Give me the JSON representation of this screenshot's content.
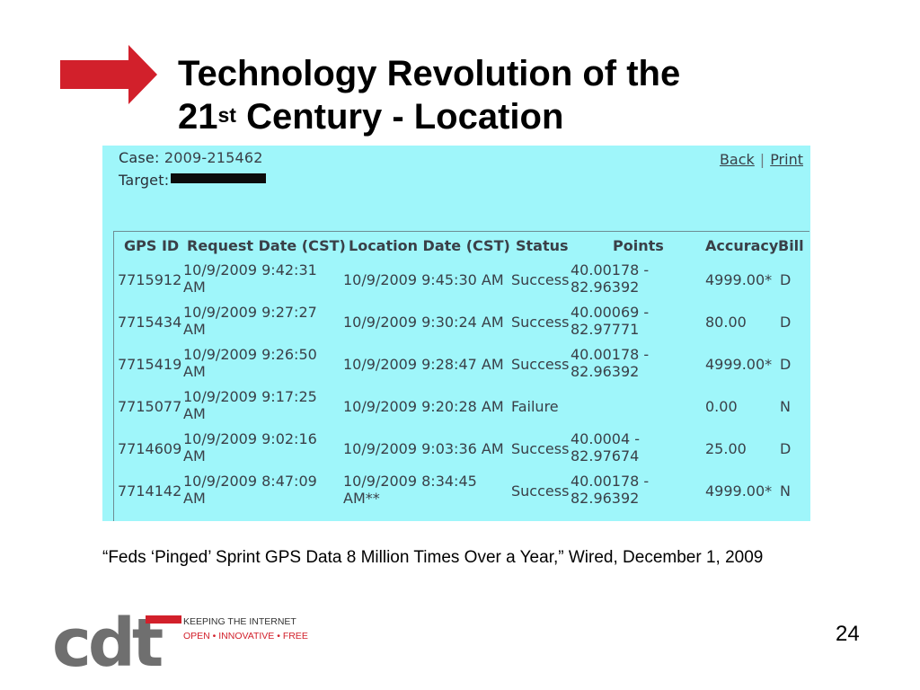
{
  "slide": {
    "title_line1": "Technology Revolution of the",
    "title_line2_pre": "21",
    "title_line2_sup": "st",
    "title_line2_post": " Century - Location",
    "caption": "“Feds ‘Pinged’ Sprint GPS Data 8 Million Times Over a Year,” Wired, December 1, 2009",
    "page_number": "24",
    "accent_color": "#d2202b"
  },
  "logo": {
    "wordmark": "cdt",
    "tagline_line1": "KEEPING THE INTERNET",
    "tagline_line2": "OPEN • INNOVATIVE • FREE"
  },
  "scan": {
    "background_color": "#9ff6fa",
    "case_label": "Case:",
    "case_value": "2009-215462",
    "target_label": "Target:",
    "links": {
      "back": "Back",
      "separator": "|",
      "print": "Print"
    },
    "columns": [
      "GPS ID",
      "Request Date (CST)",
      "Location Date (CST)",
      "Status",
      "Points",
      "Accuracy",
      "Bill"
    ],
    "rows": [
      {
        "gps_id": "7715912",
        "req1": "10/9/2009 9:42:31",
        "req2": "AM",
        "loc1": "10/9/2009 9:45:30 AM",
        "loc2": "",
        "status": "Success",
        "pt1": "40.00178 -",
        "pt2": "82.96392",
        "accuracy": "4999.00*",
        "bill": "D"
      },
      {
        "gps_id": "7715434",
        "req1": "10/9/2009 9:27:27",
        "req2": "AM",
        "loc1": "10/9/2009 9:30:24 AM",
        "loc2": "",
        "status": "Success",
        "pt1": "40.00069 -",
        "pt2": "82.97771",
        "accuracy": "80.00",
        "bill": "D"
      },
      {
        "gps_id": "7715419",
        "req1": "10/9/2009 9:26:50",
        "req2": "AM",
        "loc1": "10/9/2009 9:28:47 AM",
        "loc2": "",
        "status": "Success",
        "pt1": "40.00178 -",
        "pt2": "82.96392",
        "accuracy": "4999.00*",
        "bill": "D"
      },
      {
        "gps_id": "7715077",
        "req1": "10/9/2009 9:17:25",
        "req2": "AM",
        "loc1": "10/9/2009 9:20:28 AM",
        "loc2": "",
        "status": "Failure",
        "pt1": "",
        "pt2": "",
        "accuracy": "0.00",
        "bill": "N"
      },
      {
        "gps_id": "7714609",
        "req1": "10/9/2009 9:02:16",
        "req2": "AM",
        "loc1": "10/9/2009 9:03:36 AM",
        "loc2": "",
        "status": "Success",
        "pt1": "40.0004 -",
        "pt2": "82.97674",
        "accuracy": "25.00",
        "bill": "D"
      },
      {
        "gps_id": "7714142",
        "req1": "10/9/2009 8:47:09",
        "req2": "AM",
        "loc1": "10/9/2009 8:34:45",
        "loc2": "AM**",
        "status": "Success",
        "pt1": "40.00178 -",
        "pt2": "82.96392",
        "accuracy": "4999.00*",
        "bill": "N"
      }
    ]
  }
}
